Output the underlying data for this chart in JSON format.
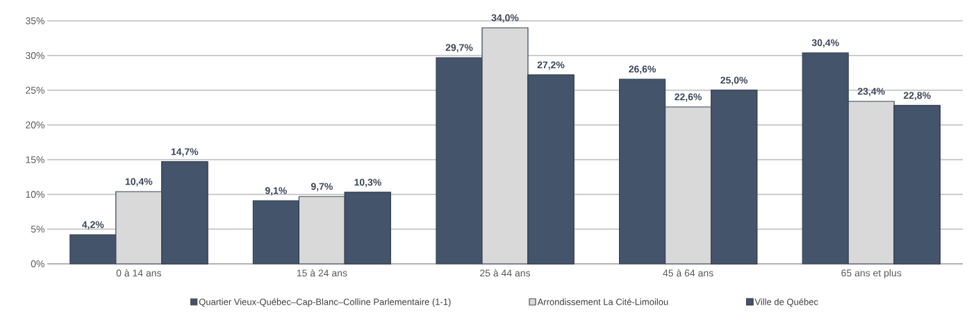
{
  "chart_data": {
    "type": "bar",
    "categories": [
      "0 à 14 ans",
      "15 à 24 ans",
      "25 à 44 ans",
      "45 à 64 ans",
      "65 ans et plus"
    ],
    "series": [
      {
        "name": "Quartier Vieux-Québec–Cap-Blanc–Colline Parlementaire (1-1)",
        "color": "#44546a",
        "values": [
          4.2,
          9.1,
          29.7,
          26.6,
          30.4
        ],
        "value_labels": [
          "4,2%",
          "9,1%",
          "29,7%",
          "26,6%",
          "30,4%"
        ]
      },
      {
        "name": "Arrondissement La Cité-Limoilou",
        "color": "#d9d9d9",
        "values": [
          10.4,
          9.7,
          34.0,
          22.6,
          23.4
        ],
        "value_labels": [
          "10,4%",
          "9,7%",
          "34,0%",
          "22,6%",
          "23,4%"
        ]
      },
      {
        "name": "Ville de Québec",
        "color": "#44546a",
        "values": [
          14.7,
          10.3,
          27.2,
          25.0,
          22.8
        ],
        "value_labels": [
          "14,7%",
          "10,3%",
          "27,2%",
          "25,0%",
          "22,8%"
        ]
      }
    ],
    "ylim": [
      0,
      35
    ],
    "yticks": [
      {
        "value": 0,
        "label": "0%"
      },
      {
        "value": 5,
        "label": "5%"
      },
      {
        "value": 10,
        "label": "10%"
      },
      {
        "value": 15,
        "label": "15%"
      },
      {
        "value": 20,
        "label": "20%"
      },
      {
        "value": 25,
        "label": "25%"
      },
      {
        "value": 30,
        "label": "30%"
      },
      {
        "value": 35,
        "label": "35%"
      }
    ],
    "grid": "y",
    "legend": "bottom"
  }
}
